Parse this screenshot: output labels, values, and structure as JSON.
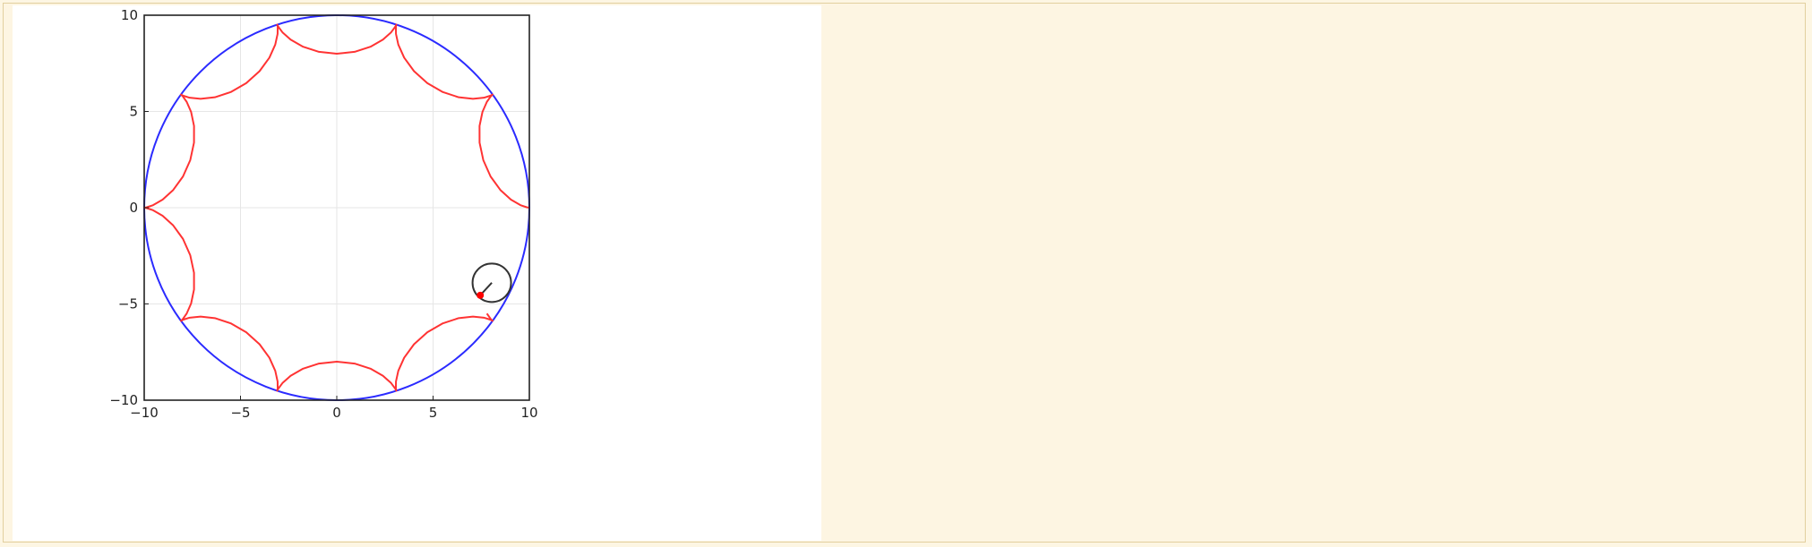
{
  "chart_data": {
    "type": "line",
    "title": "",
    "xlabel": "",
    "ylabel": "",
    "xlim": [
      -10,
      10
    ],
    "ylim": [
      -10,
      10
    ],
    "grid": true,
    "aspect": "equal",
    "legend": "none",
    "x_ticks": [
      -10,
      -5,
      0,
      5,
      10
    ],
    "y_ticks": [
      -10,
      -5,
      0,
      5,
      10
    ],
    "x_tick_labels": [
      "−10",
      "−5",
      "0",
      "5",
      "10"
    ],
    "y_tick_labels": [
      "−10",
      "−5",
      "0",
      "5",
      "10"
    ],
    "fixed_circle": {
      "center": [
        0,
        0
      ],
      "radius": 10,
      "color": "#2b2bff"
    },
    "hypocycloid": {
      "R": 10,
      "r": 1,
      "cusps": 10,
      "theta_end_deg": 330,
      "samples_per_arc": 12,
      "color": "#ff3333"
    },
    "rolling_circle": {
      "center": [
        8.05,
        -3.9
      ],
      "radius": 1,
      "color": "#333333"
    },
    "radius_line": {
      "from": [
        8.05,
        -3.9
      ],
      "to": [
        7.45,
        -4.55
      ],
      "color": "#333333"
    },
    "tracing_point": {
      "position": [
        7.45,
        -4.55
      ],
      "color": "#ff0000"
    }
  }
}
